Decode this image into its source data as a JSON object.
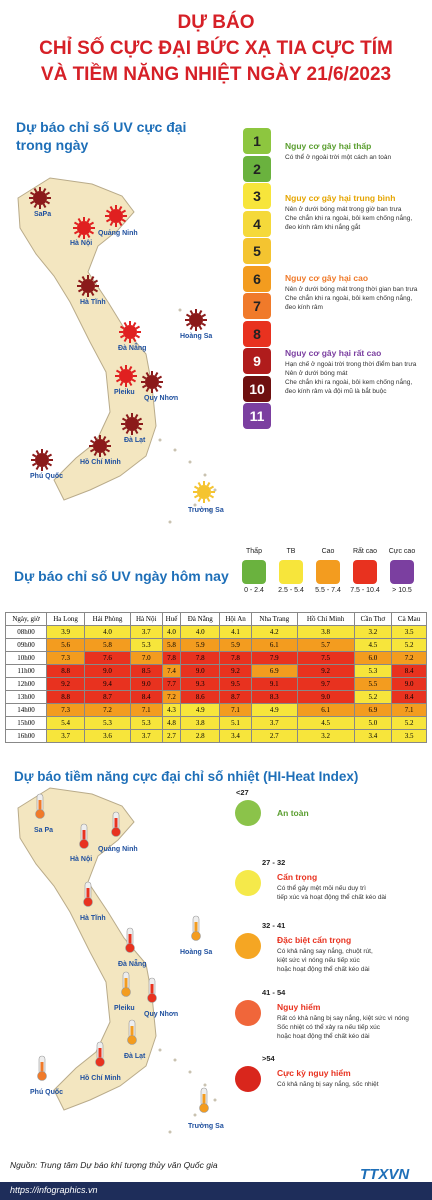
{
  "header": {
    "title_lines": [
      "DỰ BÁO",
      "CHỈ SỐ CỰC ĐẠI BỨC XẠ TIA CỰC TÍM",
      "VÀ TIỀM NĂNG NHIỆT NGÀY 21/6/2023"
    ]
  },
  "uv_max": {
    "title_lines": [
      "Dự báo chỉ số UV cực đại",
      "trong ngày"
    ],
    "places": [
      {
        "name": "SaPa",
        "color": "#8b1a1a"
      },
      {
        "name": "Hà Nội",
        "color": "#e02020"
      },
      {
        "name": "Quảng Ninh",
        "color": "#e02020"
      },
      {
        "name": "Hà Tĩnh",
        "color": "#8b1a1a"
      },
      {
        "name": "Hoàng Sa",
        "color": "#8b1a1a"
      },
      {
        "name": "Đà Nẵng",
        "color": "#e02020"
      },
      {
        "name": "Pleiku",
        "color": "#e02020"
      },
      {
        "name": "Quy Nhơn",
        "color": "#8b1a1a"
      },
      {
        "name": "Đà Lạt",
        "color": "#8b1a1a"
      },
      {
        "name": "Hồ Chí Minh",
        "color": "#8b1a1a"
      },
      {
        "name": "Phú Quốc",
        "color": "#8b1a1a"
      },
      {
        "name": "Trường Sa",
        "color": "#f5c430"
      }
    ],
    "scale": [
      {
        "level": "1",
        "color": "#8dc63f"
      },
      {
        "level": "2",
        "color": "#6ab23e"
      },
      {
        "level": "3",
        "color": "#f7e53b"
      },
      {
        "level": "4",
        "color": "#f5d93a"
      },
      {
        "level": "5",
        "color": "#f4c430"
      },
      {
        "level": "6",
        "color": "#f39c1f"
      },
      {
        "level": "7",
        "color": "#f07a2a"
      },
      {
        "level": "8",
        "color": "#e8321f"
      },
      {
        "level": "9",
        "color": "#b01c1c"
      },
      {
        "level": "10",
        "color": "#6e1010"
      },
      {
        "level": "11",
        "color": "#7b3fa0"
      }
    ],
    "groups": [
      {
        "title": "Nguy cơ gây hại thấp",
        "color": "#5a9e2f",
        "lines": [
          "Có thể ở ngoài trời một cách an toàn"
        ]
      },
      {
        "title": "Nguy cơ gây hại trung bình",
        "color": "#e6a500",
        "lines": [
          "Nên ở dưới bóng mát trong giờ ban trưa",
          "Che chắn khi ra ngoài, bôi kem chống nắng,",
          "đeo kính râm khi nắng gắt"
        ]
      },
      {
        "title": "Nguy cơ gây hại cao",
        "color": "#f07a2a",
        "lines": [
          "Nên ở dưới bóng mát trong thời gian ban trưa",
          "Che chắn khi ra ngoài, bôi kem chống nắng,",
          "đeo kính râm"
        ]
      },
      {
        "title": "Nguy cơ gây hại rất cao",
        "color": "#7b3fa0",
        "lines": [
          "Hạn chế ở ngoài trời trong thời điểm ban trưa",
          "Nên ở dưới bóng mát",
          "Che chắn khi ra ngoài, bôi kem chống nắng,",
          "đeo kính râm và đội mũ là bắt buộc"
        ]
      }
    ]
  },
  "uv_today": {
    "title": "Dự báo chỉ số UV ngày hôm nay",
    "legend": [
      {
        "name": "Thấp",
        "range": "0 - 2.4",
        "color": "#6ab23e"
      },
      {
        "name": "TB",
        "range": "2.5 - 5.4",
        "color": "#f7e53b"
      },
      {
        "name": "Cao",
        "range": "5.5 - 7.4",
        "color": "#f39c1f"
      },
      {
        "name": "Rất cao",
        "range": "7.5 - 10.4",
        "color": "#e8321f"
      },
      {
        "name": "Cực cao",
        "range": "> 10.5",
        "color": "#7b3fa0"
      }
    ],
    "table": {
      "header": [
        "Ngày, giờ",
        "Ha Long",
        "Hải Phòng",
        "Hà Nội",
        "Huế",
        "Đà Nẵng",
        "Hội An",
        "Nha Trang",
        "Hồ Chí Minh",
        "Cần Thơ",
        "Cà Mau"
      ],
      "rows": [
        [
          "08h00",
          "3.9",
          "4.0",
          "3.7",
          "4.0",
          "4.0",
          "4.1",
          "4.2",
          "3.8",
          "3.2",
          "3.5"
        ],
        [
          "09h00",
          "5.6",
          "5.8",
          "5.3",
          "5.8",
          "5.9",
          "5.9",
          "6.1",
          "5.7",
          "4.5",
          "5.2"
        ],
        [
          "10h00",
          "7.3",
          "7.6",
          "7.0",
          "7.8",
          "7.8",
          "7.8",
          "7.9",
          "7.5",
          "6.0",
          "7.2"
        ],
        [
          "11h00",
          "8.8",
          "9.0",
          "8.5",
          "7.4",
          "9.0",
          "9.2",
          "6.9",
          "9.2",
          "5.3",
          "8.4"
        ],
        [
          "12h00",
          "9.2",
          "9.4",
          "9.0",
          "7.7",
          "9.3",
          "9.5",
          "9.1",
          "9.7",
          "5.5",
          "9.0"
        ],
        [
          "13h00",
          "8.8",
          "8.7",
          "8.4",
          "7.2",
          "8.6",
          "8.7",
          "8.3",
          "9.0",
          "5.2",
          "8.4"
        ],
        [
          "14h00",
          "7.3",
          "7.2",
          "7.1",
          "4.3",
          "4.9",
          "7.1",
          "4.9",
          "6.1",
          "6.9",
          "7.1"
        ],
        [
          "15h00",
          "5.4",
          "5.3",
          "5.3",
          "4.8",
          "3.8",
          "5.1",
          "3.7",
          "4.5",
          "5.0",
          "5.2"
        ],
        [
          "16h00",
          "3.7",
          "3.6",
          "3.7",
          "2.7",
          "2.8",
          "3.4",
          "2.7",
          "3.2",
          "3.4",
          "3.5"
        ]
      ],
      "cell_colors": [
        [
          "#f7e53b",
          "#f7e53b",
          "#f7e53b",
          "#f7e53b",
          "#f7e53b",
          "#f7e53b",
          "#f7e53b",
          "#f7e53b",
          "#f7e53b",
          "#f7e53b"
        ],
        [
          "#f39c1f",
          "#f39c1f",
          "#f7e53b",
          "#f39c1f",
          "#f39c1f",
          "#f39c1f",
          "#f39c1f",
          "#f39c1f",
          "#f7e53b",
          "#f7e53b"
        ],
        [
          "#f39c1f",
          "#e8321f",
          "#f39c1f",
          "#e8321f",
          "#e8321f",
          "#e8321f",
          "#e8321f",
          "#e8321f",
          "#f39c1f",
          "#f39c1f"
        ],
        [
          "#e8321f",
          "#e8321f",
          "#e8321f",
          "#f39c1f",
          "#e8321f",
          "#e8321f",
          "#f39c1f",
          "#e8321f",
          "#f7e53b",
          "#e8321f"
        ],
        [
          "#e8321f",
          "#e8321f",
          "#e8321f",
          "#e8321f",
          "#e8321f",
          "#e8321f",
          "#e8321f",
          "#e8321f",
          "#f39c1f",
          "#e8321f"
        ],
        [
          "#e8321f",
          "#e8321f",
          "#e8321f",
          "#f39c1f",
          "#e8321f",
          "#e8321f",
          "#e8321f",
          "#e8321f",
          "#f7e53b",
          "#e8321f"
        ],
        [
          "#f39c1f",
          "#f39c1f",
          "#f39c1f",
          "#f7e53b",
          "#f7e53b",
          "#f39c1f",
          "#f7e53b",
          "#f39c1f",
          "#f39c1f",
          "#f39c1f"
        ],
        [
          "#f7e53b",
          "#f7e53b",
          "#f7e53b",
          "#f7e53b",
          "#f7e53b",
          "#f7e53b",
          "#f7e53b",
          "#f7e53b",
          "#f7e53b",
          "#f7e53b"
        ],
        [
          "#f7e53b",
          "#f7e53b",
          "#f7e53b",
          "#f7e53b",
          "#f7e53b",
          "#f7e53b",
          "#f7e53b",
          "#f7e53b",
          "#f7e53b",
          "#f7e53b"
        ]
      ]
    }
  },
  "heat": {
    "title": "Dự báo tiềm năng cực đại chỉ số nhiệt (HI-Heat Index)",
    "places": [
      {
        "name": "Sa Pa",
        "color": "#f07a2a"
      },
      {
        "name": "Hà Nội",
        "color": "#e8321f"
      },
      {
        "name": "Quảng Ninh",
        "color": "#e8321f"
      },
      {
        "name": "Hà Tĩnh",
        "color": "#e8321f"
      },
      {
        "name": "Hoàng Sa",
        "color": "#f39c1f"
      },
      {
        "name": "Đà Nẵng",
        "color": "#e8321f"
      },
      {
        "name": "Pleiku",
        "color": "#f39c1f"
      },
      {
        "name": "Quy Nhơn",
        "color": "#e8321f"
      },
      {
        "name": "Đà Lạt",
        "color": "#f39c1f"
      },
      {
        "name": "Hồ Chí Minh",
        "color": "#e8321f"
      },
      {
        "name": "Phú Quốc",
        "color": "#f07a2a"
      },
      {
        "name": "Trường Sa",
        "color": "#f39c1f"
      }
    ],
    "levels": [
      {
        "range": "<27",
        "title": "An toàn",
        "color": "#8bc34a",
        "lines": []
      },
      {
        "range": "27 - 32",
        "title": "Cẩn trọng",
        "color": "#f5e94a",
        "lines": [
          "Có thể gây mệt mỏi nếu duy trì",
          "tiếp xúc và hoạt động thể chất kéo dài"
        ]
      },
      {
        "range": "32 - 41",
        "title": "Đặc biệt cẩn trọng",
        "color": "#f5a623",
        "lines": [
          "Có khả năng say nắng, chuột rút,",
          "kiệt sức vì nóng nếu tiếp xúc",
          "hoặc hoạt động thể chất kéo dài"
        ]
      },
      {
        "range": "41 - 54",
        "title": "Nguy hiểm",
        "color": "#f0663a",
        "lines": [
          "Rất có khả năng bị say nắng, kiệt sức vì nóng",
          "Sốc nhiệt có thể xảy ra nếu tiếp xúc",
          "hoặc hoạt động thể chất kéo dài"
        ]
      },
      {
        "range": ">54",
        "title": "Cực kỳ nguy hiểm",
        "color": "#d9261c",
        "lines": [
          "Có khả năng bị say nắng, sốc nhiệt"
        ]
      }
    ]
  },
  "footer": {
    "source": "Nguồn: Trung tâm Dự báo khí tượng thủy văn Quốc gia",
    "url": "https://infographics.vn",
    "brand": "TTXVN"
  }
}
